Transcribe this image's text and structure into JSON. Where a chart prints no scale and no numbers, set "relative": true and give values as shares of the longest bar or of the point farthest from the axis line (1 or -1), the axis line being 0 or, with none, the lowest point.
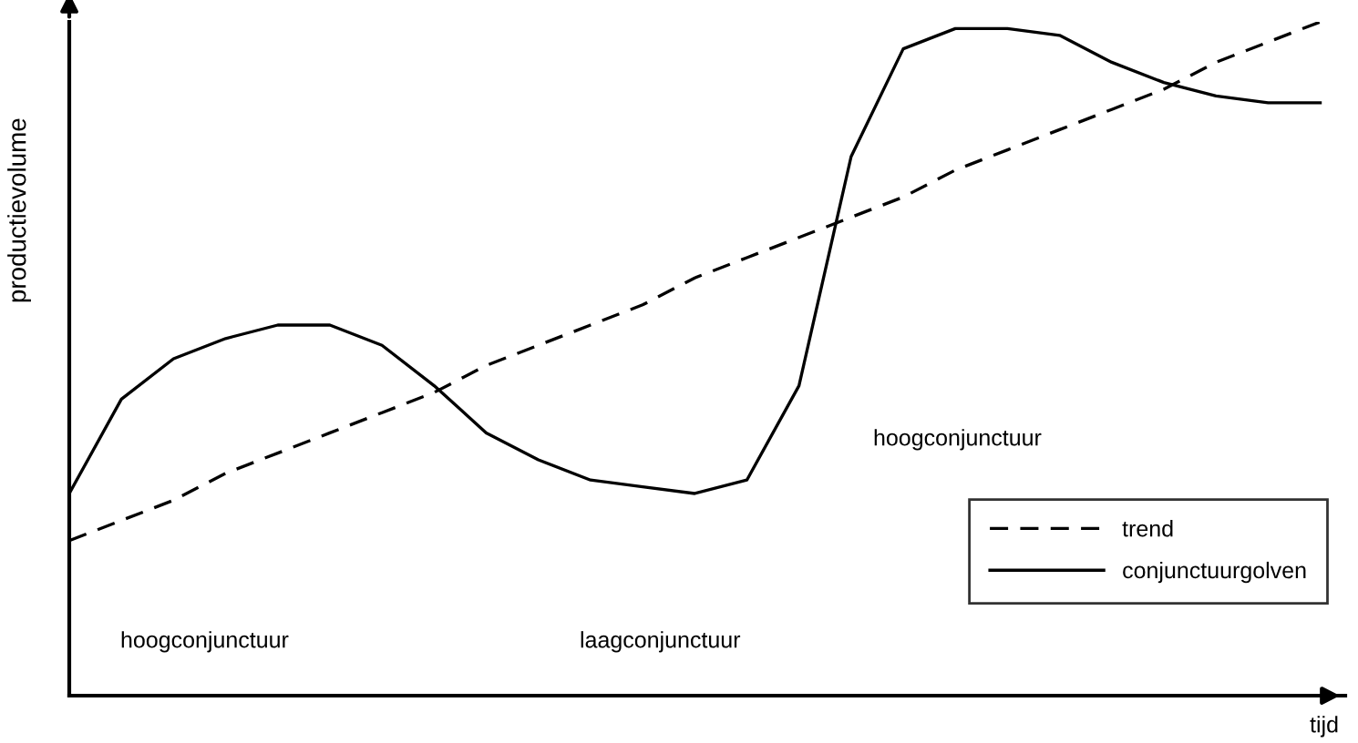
{
  "chart_data": {
    "type": "line",
    "relative": true,
    "xlabel": "tijd",
    "ylabel": "productievolume",
    "legend": "bottom right",
    "annotations": [
      "hoogconjunctuur",
      "laagconjunctuur",
      "hoogconjunctuur"
    ],
    "categories": [
      null,
      null,
      null,
      null,
      null,
      null,
      null,
      null,
      null,
      null,
      null,
      null,
      null,
      null,
      null,
      null,
      null,
      null,
      null,
      null,
      null,
      null,
      null,
      null,
      null
    ],
    "series": [
      {
        "name": "trend",
        "color": "#000000",
        "line_style": "dashed",
        "values": [
          0.23,
          0.26,
          0.29,
          0.33,
          0.36,
          0.39,
          0.42,
          0.45,
          0.49,
          0.52,
          0.55,
          0.58,
          0.62,
          0.65,
          0.68,
          0.71,
          0.74,
          0.78,
          0.81,
          0.84,
          0.87,
          0.9,
          0.94,
          0.97,
          1.0
        ]
      },
      {
        "name": "conjunctuurgolven",
        "color": "#000000",
        "line_style": "solid",
        "values": [
          0.3,
          0.44,
          0.5,
          0.53,
          0.55,
          0.55,
          0.52,
          0.46,
          0.39,
          0.35,
          0.32,
          0.31,
          0.3,
          0.32,
          0.46,
          0.8,
          0.96,
          0.99,
          0.99,
          0.98,
          0.94,
          0.91,
          0.89,
          0.88,
          0.88
        ]
      }
    ]
  }
}
